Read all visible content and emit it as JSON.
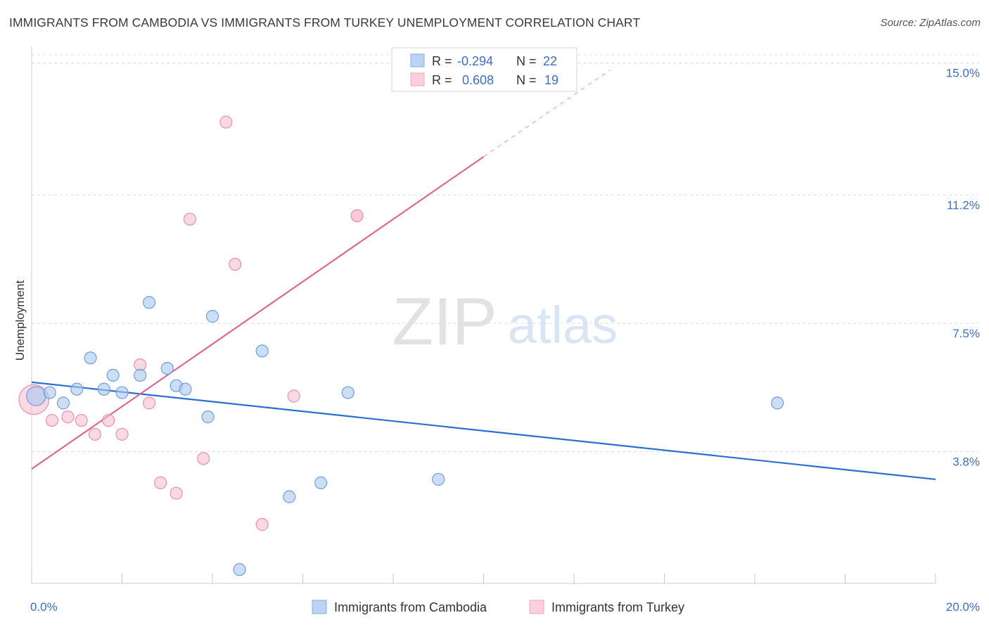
{
  "title": "IMMIGRANTS FROM CAMBODIA VS IMMIGRANTS FROM TURKEY UNEMPLOYMENT CORRELATION CHART",
  "source": "Source: ZipAtlas.com",
  "watermark": {
    "zip": "ZIP",
    "atlas": "atlas"
  },
  "colors": {
    "cambodia_fill": "#a9c8f0",
    "cambodia_stroke": "#6d9fe0",
    "cambodia_line": "#2a6fd1",
    "turkey_fill": "#f6bfd0",
    "turkey_stroke": "#ea8fae",
    "turkey_line": "#e0668f",
    "value_text": "#3a6fc9",
    "tick_text": "#3a6fc9",
    "grid": "#dcdcdc"
  },
  "legend_top": [
    {
      "r_label": "R =",
      "r_value": "-0.294",
      "n_label": "N =",
      "n_value": "22"
    },
    {
      "r_label": "R =",
      "r_value": "0.608",
      "n_label": "N =",
      "n_value": "19"
    }
  ],
  "chart_data": {
    "type": "scatter",
    "xlabel": "",
    "ylabel": "Unemployment",
    "xlim": [
      0,
      20
    ],
    "ylim": [
      0,
      15.4
    ],
    "x_tick_labels": [
      "0.0%",
      "20.0%"
    ],
    "y_ticks": [
      {
        "value": 3.8,
        "label": "3.8%"
      },
      {
        "value": 7.5,
        "label": "7.5%"
      },
      {
        "value": 11.2,
        "label": "11.2%"
      },
      {
        "value": 15.0,
        "label": "15.0%"
      }
    ],
    "grid": "horizontal dashed",
    "legend_position": "bottom",
    "series": [
      {
        "name": "Immigrants from Cambodia",
        "color_key": "cambodia",
        "trend": {
          "x0": 0,
          "y0": 5.8,
          "x1": 20,
          "y1": 3.0
        },
        "points": [
          [
            0.1,
            5.4,
            1.6
          ],
          [
            0.4,
            5.5,
            1
          ],
          [
            0.7,
            5.2,
            1
          ],
          [
            1.0,
            5.6,
            1
          ],
          [
            1.3,
            6.5,
            1
          ],
          [
            1.6,
            5.6,
            1
          ],
          [
            1.8,
            6.0,
            1
          ],
          [
            2.0,
            5.5,
            1
          ],
          [
            2.4,
            6.0,
            1
          ],
          [
            2.6,
            8.1,
            1
          ],
          [
            3.0,
            6.2,
            1
          ],
          [
            3.2,
            5.7,
            1
          ],
          [
            3.4,
            5.6,
            1
          ],
          [
            3.9,
            4.8,
            1
          ],
          [
            4.0,
            7.7,
            1
          ],
          [
            4.6,
            0.4,
            1
          ],
          [
            5.1,
            6.7,
            1
          ],
          [
            5.7,
            2.5,
            1
          ],
          [
            6.4,
            2.9,
            1
          ],
          [
            7.0,
            5.5,
            1
          ],
          [
            9.0,
            3.0,
            1
          ],
          [
            16.5,
            5.2,
            1
          ]
        ]
      },
      {
        "name": "Immigrants from Turkey",
        "color_key": "turkey",
        "trend": {
          "x0": 0,
          "y0": 3.3,
          "x1": 10,
          "y1": 12.3,
          "dash_x1": 12.8,
          "dash_y1": 14.8
        },
        "points": [
          [
            0.05,
            5.3,
            2.5
          ],
          [
            0.45,
            4.7,
            1
          ],
          [
            0.8,
            4.8,
            1
          ],
          [
            1.1,
            4.7,
            1
          ],
          [
            1.4,
            4.3,
            1
          ],
          [
            1.7,
            4.7,
            1
          ],
          [
            2.0,
            4.3,
            1
          ],
          [
            2.4,
            6.3,
            1
          ],
          [
            2.6,
            5.2,
            1
          ],
          [
            2.85,
            2.9,
            1
          ],
          [
            3.2,
            2.6,
            1
          ],
          [
            3.5,
            10.5,
            1
          ],
          [
            3.8,
            3.6,
            1
          ],
          [
            4.3,
            13.3,
            1
          ],
          [
            4.5,
            9.2,
            1
          ],
          [
            5.1,
            1.7,
            1
          ],
          [
            5.8,
            5.4,
            1
          ],
          [
            7.2,
            10.6,
            1
          ],
          [
            7.2,
            10.6,
            1
          ]
        ]
      }
    ]
  }
}
